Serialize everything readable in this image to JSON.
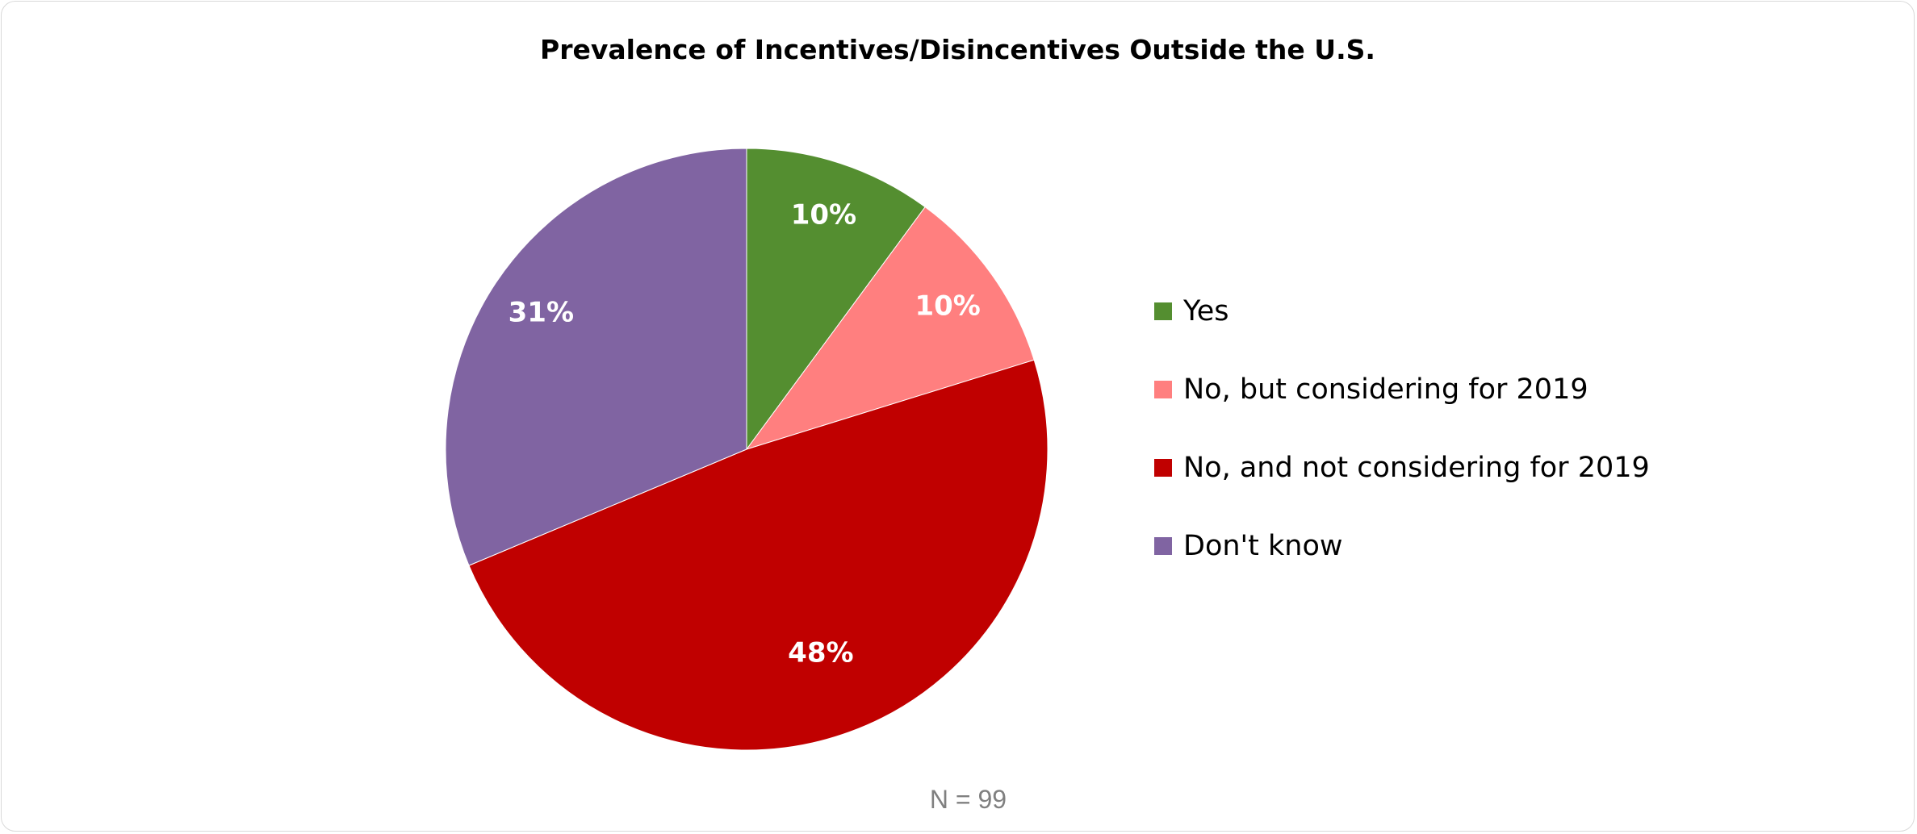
{
  "chart_data": {
    "type": "pie",
    "title": "Prevalence of Incentives/Disincentives Outside the U.S.",
    "categories": [
      "Yes",
      "No, but considering for 2019",
      "No, and not considering for 2019",
      "Don't know"
    ],
    "values": [
      10,
      10,
      48,
      31
    ],
    "value_labels": [
      "10%",
      "10%",
      "48%",
      "31%"
    ],
    "colors": [
      "#548E30",
      "#FF7F7F",
      "#C00000",
      "#8064A2"
    ],
    "legend_position": "right",
    "note": "N = 99"
  }
}
